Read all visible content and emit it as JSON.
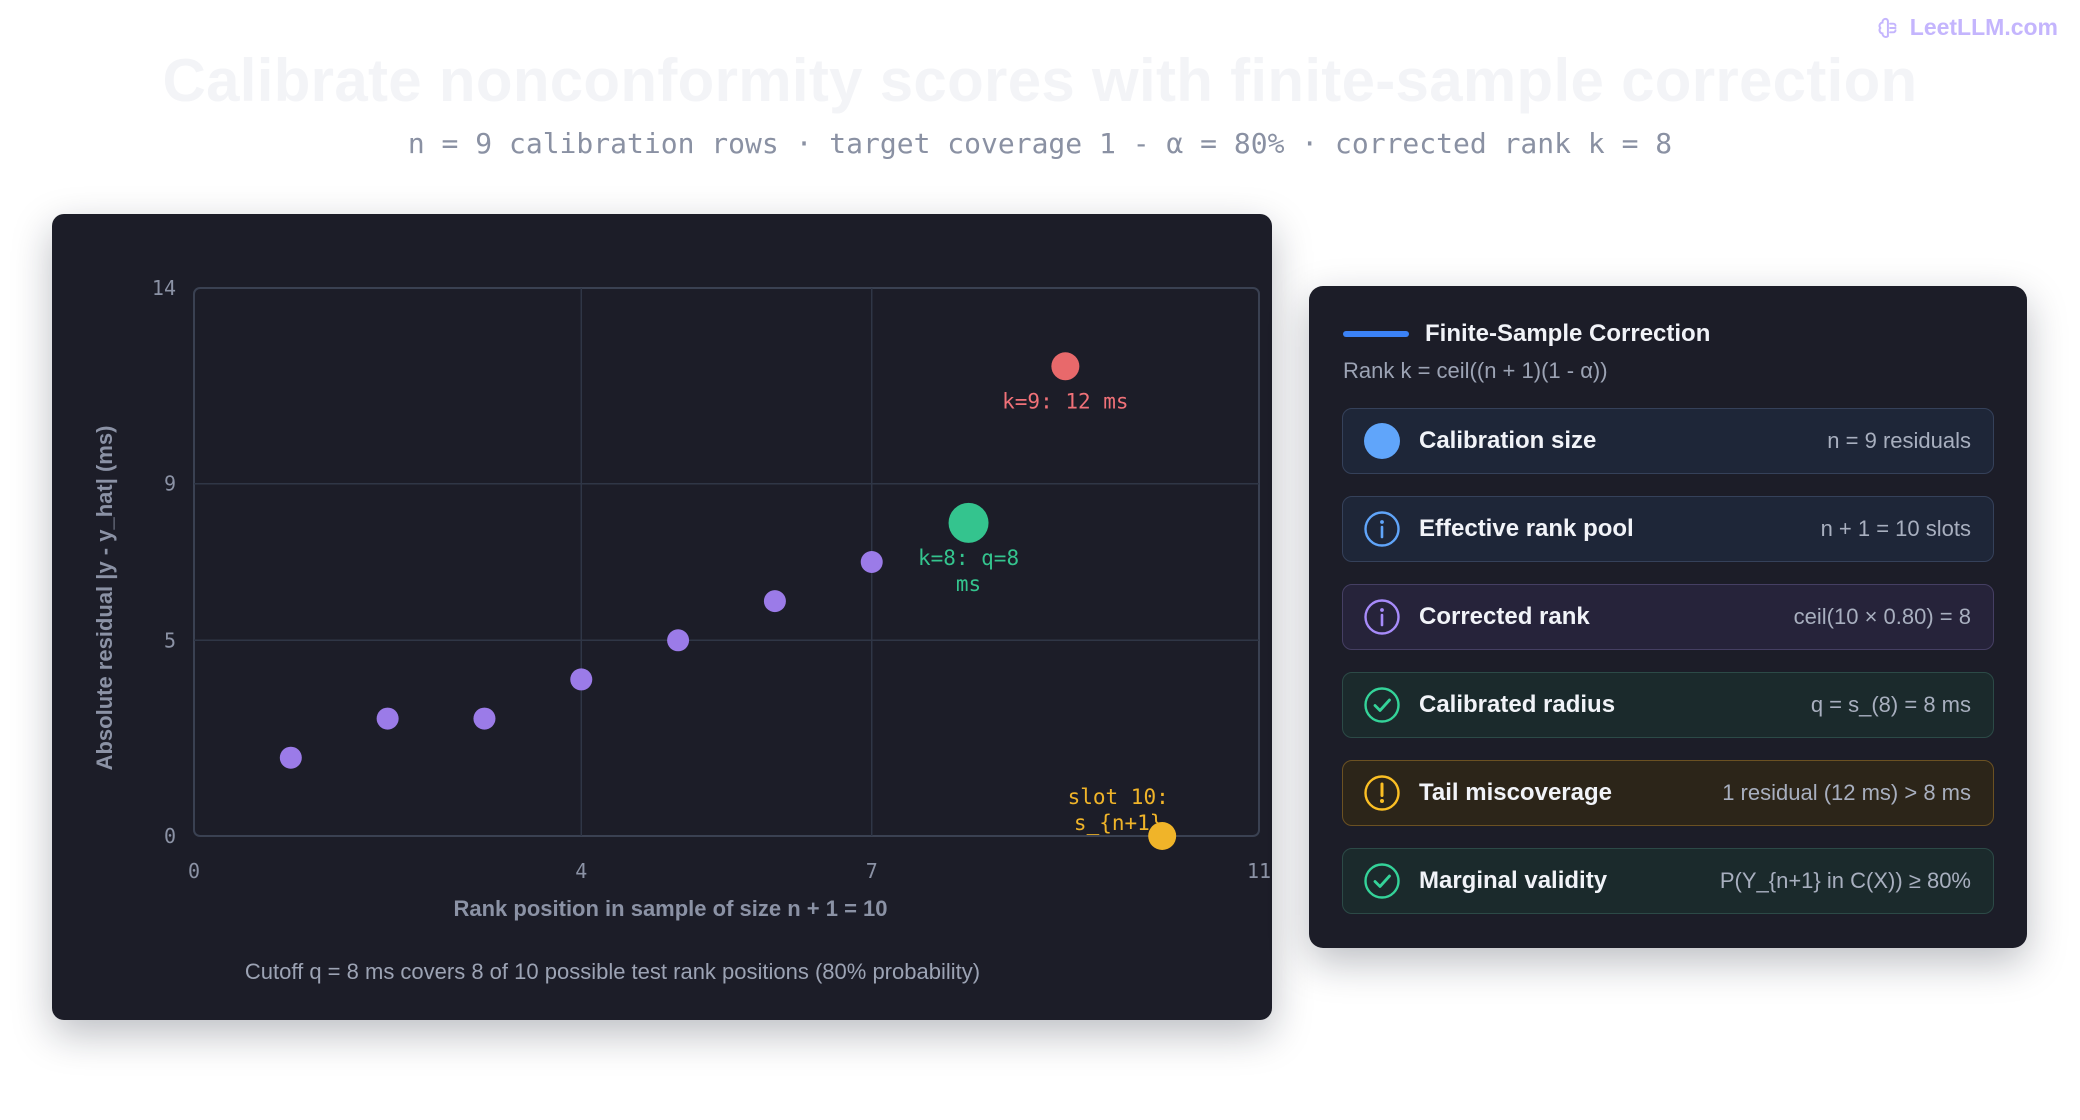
{
  "brand": {
    "logo_text": "LeetLLM.com"
  },
  "title": "Calibrate nonconformity scores with finite-sample correction",
  "subtitle": "n = 9 calibration rows · target coverage 1 - α = 80% · corrected rank k = 8",
  "chart_data": {
    "type": "scatter",
    "title": "",
    "xlabel": "Rank position in sample of size n + 1 = 10",
    "ylabel": "Absolute residual |y - y_hat| (ms)",
    "xlim": [
      0,
      11
    ],
    "ylim": [
      0,
      14
    ],
    "x_ticks": [
      0,
      4,
      7,
      11
    ],
    "y_ticks": [
      0,
      5,
      9,
      14
    ],
    "grid": true,
    "series": [
      {
        "role": "calibration",
        "color": "#9b7be8",
        "points": [
          {
            "x": 1,
            "y": 2
          },
          {
            "x": 2,
            "y": 3
          },
          {
            "x": 3,
            "y": 3
          },
          {
            "x": 4,
            "y": 4
          },
          {
            "x": 5,
            "y": 5
          },
          {
            "x": 6,
            "y": 6
          },
          {
            "x": 7,
            "y": 7
          }
        ]
      },
      {
        "role": "cutoff",
        "color": "#34c48e",
        "points": [
          {
            "x": 8,
            "y": 8
          }
        ]
      },
      {
        "role": "tail",
        "color": "#e8696b",
        "points": [
          {
            "x": 9,
            "y": 12
          }
        ]
      },
      {
        "role": "test-slot",
        "color": "#f0b429",
        "points": [
          {
            "x": 10,
            "y": 0
          }
        ]
      }
    ],
    "annotations": [
      {
        "lines": [
          "k=9: 12 ms"
        ],
        "x": 9,
        "y": 12,
        "color": "#f07178"
      },
      {
        "lines": [
          "k=8: q=8",
          "ms"
        ],
        "x": 8,
        "y": 8,
        "color": "#34c48e"
      },
      {
        "lines": [
          "slot 10:",
          "s_{n+1}"
        ],
        "x": 10,
        "y": 0,
        "color": "#f0b429"
      }
    ],
    "caption": "Cutoff q = 8 ms covers 8 of 10 possible test rank positions (80% probability)"
  },
  "panel": {
    "title": "Finite-Sample Correction",
    "formula": "Rank k = ceil((n + 1)(1 - α))",
    "rows": [
      {
        "label": "Calibration size",
        "value": "n = 9 residuals",
        "icon": "dot-icon",
        "color": "#60a5fa",
        "tone": "blue"
      },
      {
        "label": "Effective rank pool",
        "value": "n + 1 = 10 slots",
        "icon": "info-icon",
        "color": "#60a5fa",
        "tone": "blue"
      },
      {
        "label": "Corrected rank",
        "value": "ceil(10 × 0.80) = 8",
        "icon": "info-icon",
        "color": "#a78bfa",
        "tone": "purple"
      },
      {
        "label": "Calibrated radius",
        "value": "q = s_(8) = 8 ms",
        "icon": "check-icon",
        "color": "#34d399",
        "tone": "green"
      },
      {
        "label": "Tail miscoverage",
        "value": "1 residual (12 ms) > 8 ms",
        "icon": "warning-icon",
        "color": "#fbbf24",
        "tone": "amber"
      },
      {
        "label": "Marginal validity",
        "value": "P(Y_{n+1} in C(X)) ≥ 80%",
        "icon": "check-icon",
        "color": "#34d399",
        "tone": "green"
      }
    ]
  }
}
